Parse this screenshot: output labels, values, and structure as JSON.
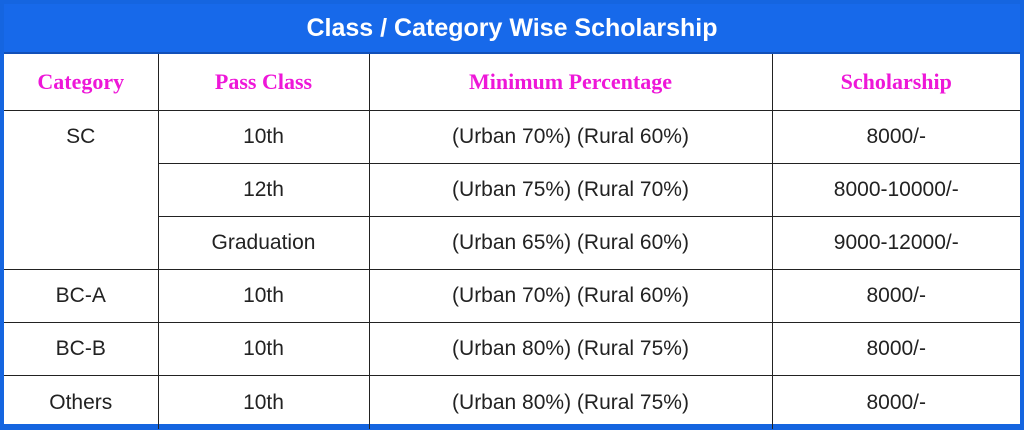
{
  "title": "Class / Category Wise Scholarship",
  "headers": {
    "category": "Category",
    "pass_class": "Pass Class",
    "min_percentage": "Minimum Percentage",
    "scholarship": "Scholarship"
  },
  "rows": [
    {
      "category": "SC",
      "pass_class": "10th",
      "min_percentage": "(Urban 70%) (Rural 60%)",
      "scholarship": "8000/-"
    },
    {
      "category": "",
      "pass_class": "12th",
      "min_percentage": "(Urban 75%) (Rural 70%)",
      "scholarship": "8000-10000/-"
    },
    {
      "category": "",
      "pass_class": "Graduation",
      "min_percentage": "(Urban 65%) (Rural 60%)",
      "scholarship": "9000-12000/-"
    },
    {
      "category": "BC-A",
      "pass_class": "10th",
      "min_percentage": "(Urban 70%) (Rural 60%)",
      "scholarship": "8000/-"
    },
    {
      "category": "BC-B",
      "pass_class": "10th",
      "min_percentage": "(Urban 80%) (Rural 75%)",
      "scholarship": "8000/-"
    },
    {
      "category": "Others",
      "pass_class": "10th",
      "min_percentage": "(Urban 80%) (Rural 75%)",
      "scholarship": "8000/-"
    }
  ],
  "colors": {
    "title_bar": "#1769ea",
    "header_text": "#ee17d8",
    "border": "#1565e0"
  }
}
